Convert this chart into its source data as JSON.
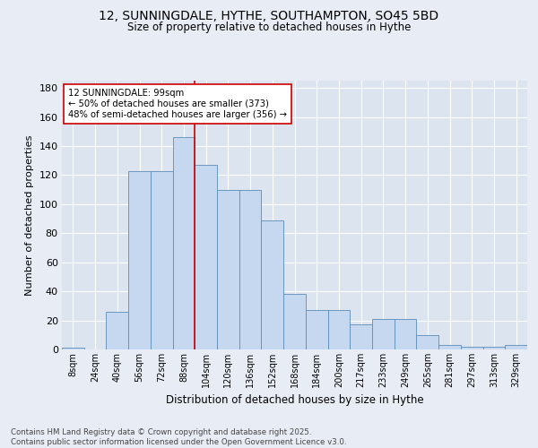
{
  "title1": "12, SUNNINGDALE, HYTHE, SOUTHAMPTON, SO45 5BD",
  "title2": "Size of property relative to detached houses in Hythe",
  "xlabel": "Distribution of detached houses by size in Hythe",
  "ylabel": "Number of detached properties",
  "categories": [
    "8sqm",
    "24sqm",
    "40sqm",
    "56sqm",
    "72sqm",
    "88sqm",
    "104sqm",
    "120sqm",
    "136sqm",
    "152sqm",
    "168sqm",
    "184sqm",
    "200sqm",
    "217sqm",
    "233sqm",
    "249sqm",
    "265sqm",
    "281sqm",
    "297sqm",
    "313sqm",
    "329sqm"
  ],
  "bar_heights": [
    1,
    0,
    26,
    123,
    123,
    146,
    127,
    110,
    110,
    89,
    38,
    27,
    27,
    17,
    21,
    21,
    10,
    3,
    2,
    2,
    3
  ],
  "bar_color": "#c5d8f0",
  "bar_edge_color": "#5b8db8",
  "vline_color": "#cc0000",
  "annotation_text": "12 SUNNINGDALE: 99sqm\n← 50% of detached houses are smaller (373)\n48% of semi-detached houses are larger (356) →",
  "annotation_box_color": "white",
  "annotation_box_edge_color": "#cc0000",
  "ylim": [
    0,
    185
  ],
  "yticks": [
    0,
    20,
    40,
    60,
    80,
    100,
    120,
    140,
    160,
    180
  ],
  "footer": "Contains HM Land Registry data © Crown copyright and database right 2025.\nContains public sector information licensed under the Open Government Licence v3.0.",
  "bg_color": "#e8edf5",
  "plot_bg_color": "#dce4f0",
  "grid_color": "#ffffff"
}
